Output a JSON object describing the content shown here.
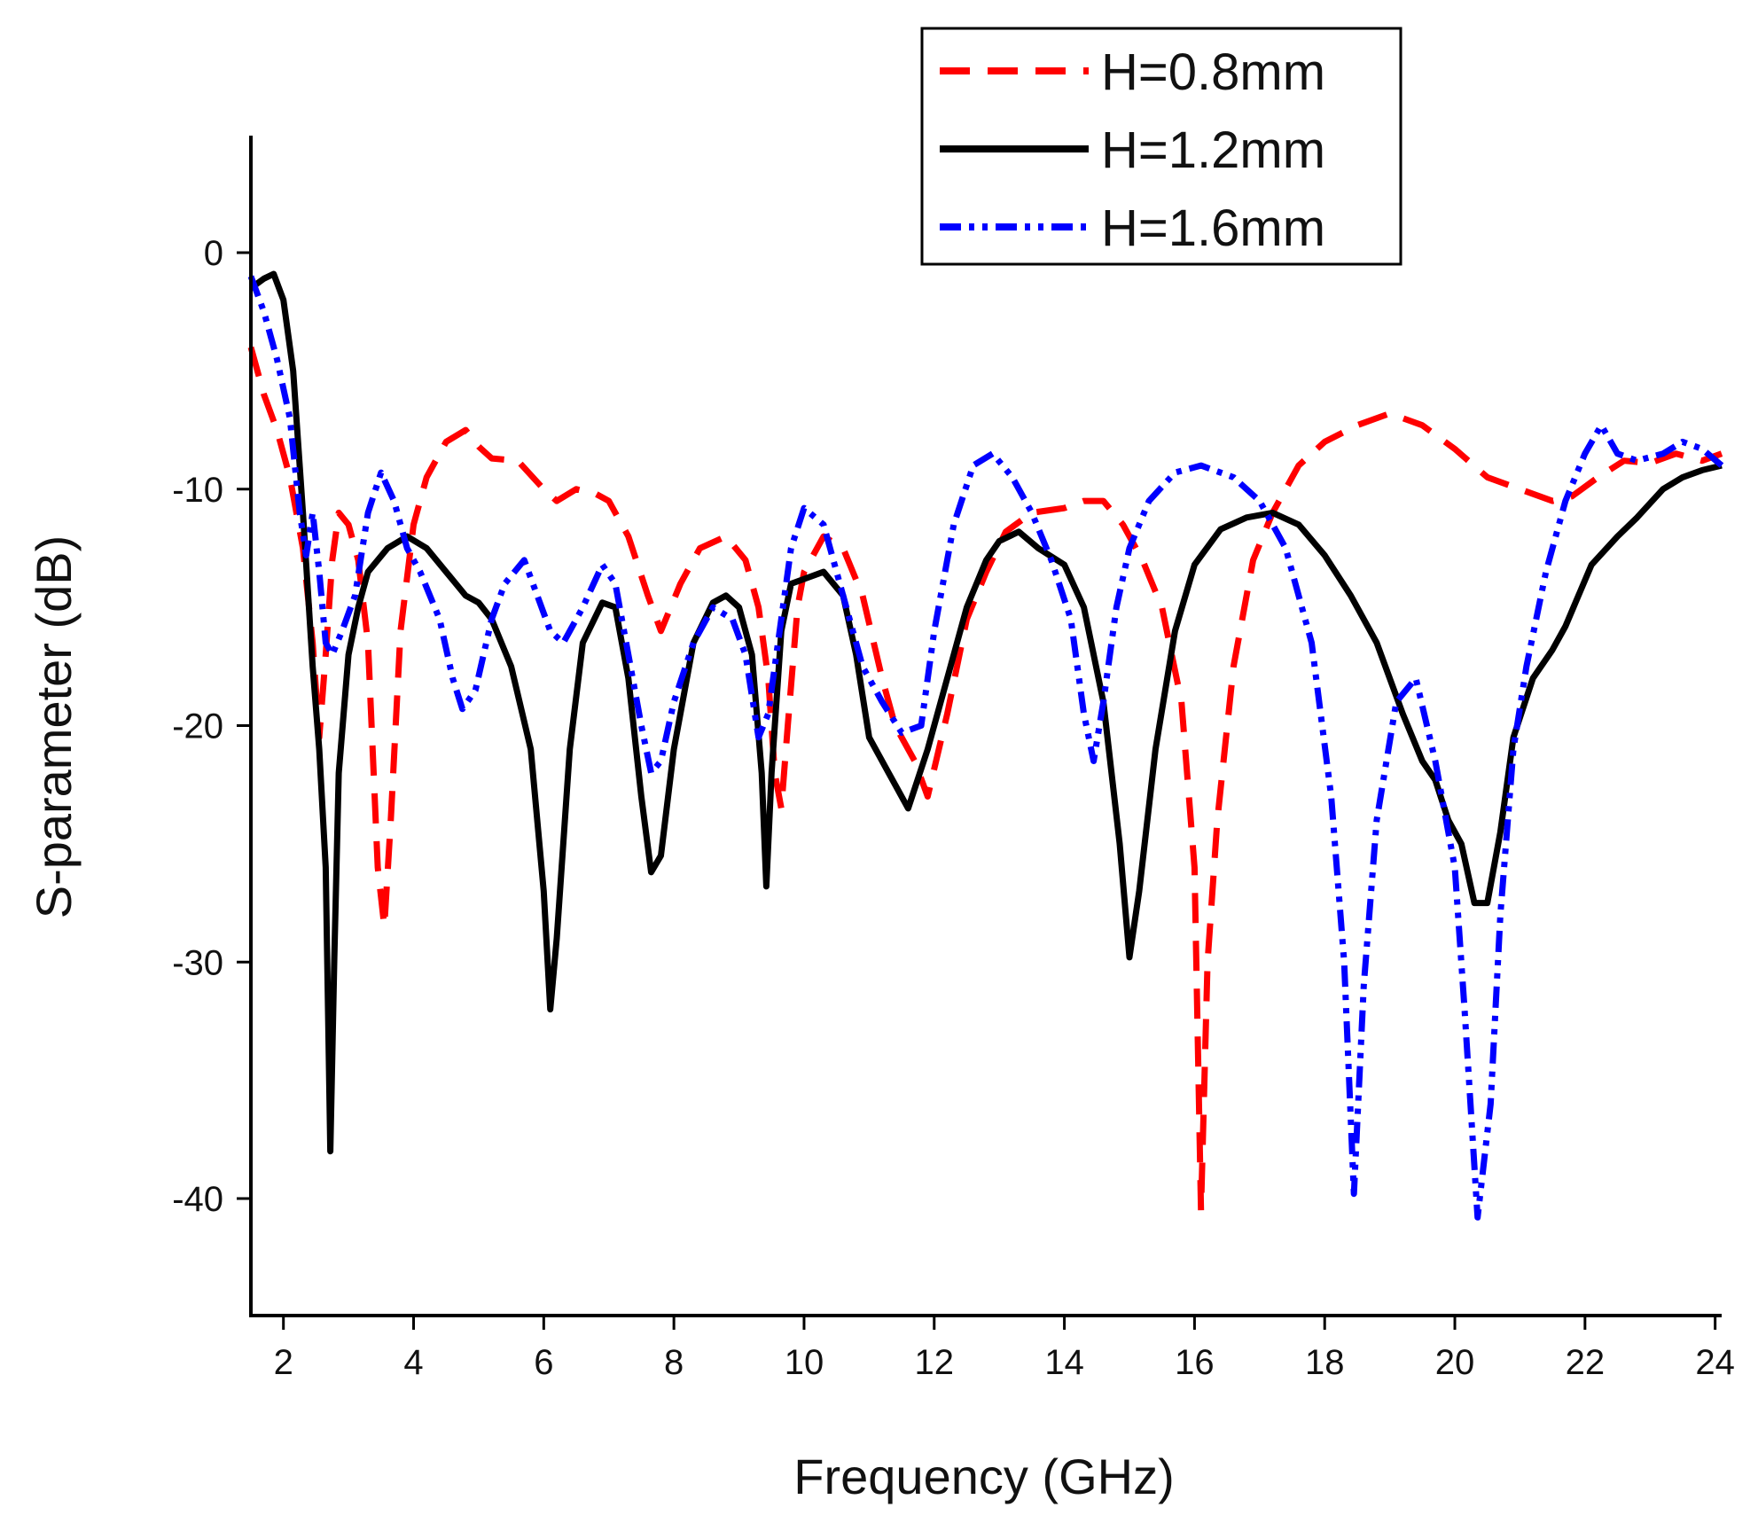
{
  "chart_data": {
    "type": "line",
    "title": "",
    "xlabel": "Frequency (GHz)",
    "ylabel": "S-parameter (dB)",
    "xlim": [
      1.5,
      24.1
    ],
    "ylim": [
      -45,
      5
    ],
    "xticks": [
      2,
      4,
      6,
      8,
      10,
      12,
      14,
      16,
      18,
      20,
      22,
      24
    ],
    "yticks": [
      0,
      -10,
      -20,
      -30,
      -40
    ],
    "xtick_labels": [
      "2",
      "4",
      "6",
      "8",
      "10",
      "12",
      "14",
      "16",
      "18",
      "20",
      "22",
      "24"
    ],
    "ytick_labels": [
      "0",
      "-10",
      "-20",
      "-30",
      "-40"
    ],
    "grid": false,
    "legend_position": "top-right",
    "series": [
      {
        "name": "H=0.8mm",
        "color": "#ff0000",
        "style": "dash",
        "points": [
          [
            1.5,
            -4.0
          ],
          [
            1.7,
            -6.0
          ],
          [
            1.9,
            -7.5
          ],
          [
            2.1,
            -9.5
          ],
          [
            2.3,
            -12.5
          ],
          [
            2.45,
            -16.5
          ],
          [
            2.55,
            -20.5
          ],
          [
            2.65,
            -17.0
          ],
          [
            2.75,
            -13.0
          ],
          [
            2.85,
            -11.0
          ],
          [
            3.0,
            -11.5
          ],
          [
            3.15,
            -13.0
          ],
          [
            3.3,
            -16.5
          ],
          [
            3.45,
            -26.0
          ],
          [
            3.55,
            -28.5
          ],
          [
            3.65,
            -24.0
          ],
          [
            3.8,
            -16.0
          ],
          [
            4.0,
            -11.5
          ],
          [
            4.2,
            -9.5
          ],
          [
            4.5,
            -8.0
          ],
          [
            4.8,
            -7.5
          ],
          [
            5.0,
            -8.2
          ],
          [
            5.2,
            -8.7
          ],
          [
            5.6,
            -8.8
          ],
          [
            6.0,
            -10.0
          ],
          [
            6.2,
            -10.5
          ],
          [
            6.5,
            -10.0
          ],
          [
            6.8,
            -10.2
          ],
          [
            7.0,
            -10.5
          ],
          [
            7.3,
            -12.0
          ],
          [
            7.6,
            -14.5
          ],
          [
            7.8,
            -16.0
          ],
          [
            8.1,
            -14.0
          ],
          [
            8.4,
            -12.5
          ],
          [
            8.8,
            -12.0
          ],
          [
            9.1,
            -13.0
          ],
          [
            9.3,
            -15.0
          ],
          [
            9.45,
            -18.0
          ],
          [
            9.55,
            -22.0
          ],
          [
            9.65,
            -23.5
          ],
          [
            9.75,
            -20.0
          ],
          [
            9.9,
            -15.0
          ],
          [
            10.0,
            -13.5
          ],
          [
            10.3,
            -12.0
          ],
          [
            10.6,
            -12.5
          ],
          [
            10.9,
            -14.5
          ],
          [
            11.2,
            -18.0
          ],
          [
            11.4,
            -20.0
          ],
          [
            11.7,
            -21.5
          ],
          [
            11.9,
            -23.0
          ],
          [
            12.2,
            -19.5
          ],
          [
            12.5,
            -15.5
          ],
          [
            12.8,
            -13.5
          ],
          [
            13.1,
            -11.8
          ],
          [
            13.5,
            -11.0
          ],
          [
            14.0,
            -10.8
          ],
          [
            14.3,
            -10.5
          ],
          [
            14.6,
            -10.5
          ],
          [
            14.9,
            -11.5
          ],
          [
            15.2,
            -13.0
          ],
          [
            15.5,
            -15.0
          ],
          [
            15.8,
            -19.0
          ],
          [
            16.0,
            -26.0
          ],
          [
            16.1,
            -40.5
          ],
          [
            16.2,
            -30.0
          ],
          [
            16.35,
            -24.0
          ],
          [
            16.6,
            -17.5
          ],
          [
            16.9,
            -13.0
          ],
          [
            17.2,
            -11.0
          ],
          [
            17.6,
            -9.0
          ],
          [
            18.0,
            -8.0
          ],
          [
            18.5,
            -7.3
          ],
          [
            19.0,
            -6.8
          ],
          [
            19.5,
            -7.3
          ],
          [
            20.0,
            -8.3
          ],
          [
            20.5,
            -9.5
          ],
          [
            21.0,
            -10.0
          ],
          [
            21.5,
            -10.5
          ],
          [
            21.8,
            -10.3
          ],
          [
            22.2,
            -9.5
          ],
          [
            22.6,
            -8.8
          ],
          [
            23.0,
            -8.9
          ],
          [
            23.4,
            -8.5
          ],
          [
            23.8,
            -8.8
          ],
          [
            24.1,
            -8.5
          ]
        ]
      },
      {
        "name": "H=1.2mm",
        "color": "#000000",
        "style": "solid",
        "points": [
          [
            1.5,
            -1.5
          ],
          [
            1.7,
            -1.1
          ],
          [
            1.85,
            -0.9
          ],
          [
            2.0,
            -2.0
          ],
          [
            2.15,
            -5.0
          ],
          [
            2.3,
            -11.0
          ],
          [
            2.45,
            -17.5
          ],
          [
            2.55,
            -21.0
          ],
          [
            2.65,
            -26.0
          ],
          [
            2.72,
            -38.0
          ],
          [
            2.78,
            -30.0
          ],
          [
            2.85,
            -22.0
          ],
          [
            3.0,
            -17.0
          ],
          [
            3.15,
            -15.0
          ],
          [
            3.3,
            -13.5
          ],
          [
            3.6,
            -12.5
          ],
          [
            3.9,
            -12.0
          ],
          [
            4.2,
            -12.5
          ],
          [
            4.5,
            -13.5
          ],
          [
            4.8,
            -14.5
          ],
          [
            5.0,
            -14.8
          ],
          [
            5.2,
            -15.5
          ],
          [
            5.5,
            -17.5
          ],
          [
            5.8,
            -21.0
          ],
          [
            6.0,
            -27.0
          ],
          [
            6.1,
            -32.0
          ],
          [
            6.2,
            -29.0
          ],
          [
            6.4,
            -21.0
          ],
          [
            6.6,
            -16.5
          ],
          [
            6.9,
            -14.8
          ],
          [
            7.1,
            -15.0
          ],
          [
            7.3,
            -18.0
          ],
          [
            7.5,
            -23.0
          ],
          [
            7.65,
            -26.2
          ],
          [
            7.8,
            -25.5
          ],
          [
            8.0,
            -21.0
          ],
          [
            8.3,
            -16.5
          ],
          [
            8.6,
            -14.8
          ],
          [
            8.8,
            -14.5
          ],
          [
            9.0,
            -15.0
          ],
          [
            9.2,
            -17.0
          ],
          [
            9.35,
            -22.0
          ],
          [
            9.42,
            -26.8
          ],
          [
            9.5,
            -22.0
          ],
          [
            9.65,
            -16.0
          ],
          [
            9.8,
            -14.0
          ],
          [
            10.0,
            -13.8
          ],
          [
            10.3,
            -13.5
          ],
          [
            10.6,
            -14.5
          ],
          [
            10.8,
            -17.0
          ],
          [
            11.0,
            -20.5
          ],
          [
            11.3,
            -22.0
          ],
          [
            11.6,
            -23.5
          ],
          [
            11.9,
            -21.0
          ],
          [
            12.2,
            -18.0
          ],
          [
            12.5,
            -15.0
          ],
          [
            12.8,
            -13.0
          ],
          [
            13.0,
            -12.2
          ],
          [
            13.3,
            -11.8
          ],
          [
            13.6,
            -12.5
          ],
          [
            14.0,
            -13.2
          ],
          [
            14.3,
            -15.0
          ],
          [
            14.6,
            -19.0
          ],
          [
            14.85,
            -25.0
          ],
          [
            15.0,
            -29.8
          ],
          [
            15.15,
            -27.0
          ],
          [
            15.4,
            -21.0
          ],
          [
            15.7,
            -16.0
          ],
          [
            16.0,
            -13.2
          ],
          [
            16.4,
            -11.7
          ],
          [
            16.8,
            -11.2
          ],
          [
            17.2,
            -11.0
          ],
          [
            17.6,
            -11.5
          ],
          [
            18.0,
            -12.8
          ],
          [
            18.4,
            -14.5
          ],
          [
            18.8,
            -16.5
          ],
          [
            19.2,
            -19.5
          ],
          [
            19.5,
            -21.5
          ],
          [
            19.7,
            -22.3
          ],
          [
            19.9,
            -24.0
          ],
          [
            20.1,
            -25.0
          ],
          [
            20.3,
            -27.5
          ],
          [
            20.5,
            -27.5
          ],
          [
            20.7,
            -24.5
          ],
          [
            20.9,
            -20.5
          ],
          [
            21.2,
            -18.0
          ],
          [
            21.5,
            -16.8
          ],
          [
            21.7,
            -15.8
          ],
          [
            21.9,
            -14.5
          ],
          [
            22.1,
            -13.2
          ],
          [
            22.5,
            -12.0
          ],
          [
            22.8,
            -11.2
          ],
          [
            23.2,
            -10.0
          ],
          [
            23.5,
            -9.5
          ],
          [
            23.8,
            -9.2
          ],
          [
            24.1,
            -9.0
          ]
        ]
      },
      {
        "name": "H=1.6mm",
        "color": "#0000ff",
        "style": "dash-dot-dot",
        "points": [
          [
            1.5,
            -1.0
          ],
          [
            1.7,
            -2.5
          ],
          [
            1.9,
            -4.5
          ],
          [
            2.1,
            -7.0
          ],
          [
            2.25,
            -11.0
          ],
          [
            2.35,
            -12.8
          ],
          [
            2.45,
            -11.0
          ],
          [
            2.55,
            -13.5
          ],
          [
            2.65,
            -16.5
          ],
          [
            2.75,
            -17.0
          ],
          [
            2.9,
            -16.0
          ],
          [
            3.1,
            -14.5
          ],
          [
            3.3,
            -11.0
          ],
          [
            3.5,
            -9.3
          ],
          [
            3.7,
            -10.5
          ],
          [
            3.9,
            -12.5
          ],
          [
            4.1,
            -13.5
          ],
          [
            4.4,
            -15.5
          ],
          [
            4.6,
            -18.0
          ],
          [
            4.75,
            -19.3
          ],
          [
            4.95,
            -18.5
          ],
          [
            5.2,
            -15.5
          ],
          [
            5.4,
            -14.0
          ],
          [
            5.7,
            -13.0
          ],
          [
            5.9,
            -14.5
          ],
          [
            6.1,
            -16.0
          ],
          [
            6.3,
            -16.5
          ],
          [
            6.6,
            -15.0
          ],
          [
            6.9,
            -13.2
          ],
          [
            7.1,
            -14.0
          ],
          [
            7.3,
            -17.0
          ],
          [
            7.5,
            -20.0
          ],
          [
            7.65,
            -22.0
          ],
          [
            7.8,
            -21.5
          ],
          [
            8.0,
            -19.0
          ],
          [
            8.3,
            -16.5
          ],
          [
            8.6,
            -15.0
          ],
          [
            8.9,
            -15.5
          ],
          [
            9.1,
            -17.0
          ],
          [
            9.3,
            -20.5
          ],
          [
            9.45,
            -19.5
          ],
          [
            9.6,
            -16.5
          ],
          [
            9.8,
            -12.5
          ],
          [
            10.0,
            -10.8
          ],
          [
            10.3,
            -11.5
          ],
          [
            10.6,
            -14.5
          ],
          [
            10.9,
            -17.5
          ],
          [
            11.2,
            -19.0
          ],
          [
            11.5,
            -20.3
          ],
          [
            11.8,
            -20.0
          ],
          [
            12.0,
            -16.0
          ],
          [
            12.3,
            -11.5
          ],
          [
            12.6,
            -9.0
          ],
          [
            12.9,
            -8.5
          ],
          [
            13.2,
            -9.5
          ],
          [
            13.5,
            -11.0
          ],
          [
            13.8,
            -13.0
          ],
          [
            14.1,
            -15.5
          ],
          [
            14.3,
            -19.5
          ],
          [
            14.45,
            -21.5
          ],
          [
            14.6,
            -19.0
          ],
          [
            14.8,
            -15.0
          ],
          [
            15.0,
            -12.5
          ],
          [
            15.3,
            -10.5
          ],
          [
            15.7,
            -9.3
          ],
          [
            16.1,
            -9.0
          ],
          [
            16.6,
            -9.5
          ],
          [
            17.0,
            -10.5
          ],
          [
            17.4,
            -12.5
          ],
          [
            17.8,
            -16.5
          ],
          [
            18.1,
            -23.0
          ],
          [
            18.3,
            -30.0
          ],
          [
            18.45,
            -39.8
          ],
          [
            18.6,
            -31.0
          ],
          [
            18.8,
            -24.0
          ],
          [
            19.1,
            -19.0
          ],
          [
            19.4,
            -18.0
          ],
          [
            19.7,
            -21.5
          ],
          [
            20.0,
            -26.0
          ],
          [
            20.15,
            -32.0
          ],
          [
            20.35,
            -40.8
          ],
          [
            20.55,
            -36.0
          ],
          [
            20.7,
            -28.0
          ],
          [
            20.9,
            -21.0
          ],
          [
            21.1,
            -17.5
          ],
          [
            21.4,
            -13.5
          ],
          [
            21.7,
            -10.5
          ],
          [
            22.0,
            -8.5
          ],
          [
            22.25,
            -7.3
          ],
          [
            22.5,
            -8.5
          ],
          [
            22.8,
            -8.8
          ],
          [
            23.2,
            -8.5
          ],
          [
            23.5,
            -8.0
          ],
          [
            23.8,
            -8.3
          ],
          [
            24.1,
            -9.0
          ]
        ]
      }
    ]
  }
}
